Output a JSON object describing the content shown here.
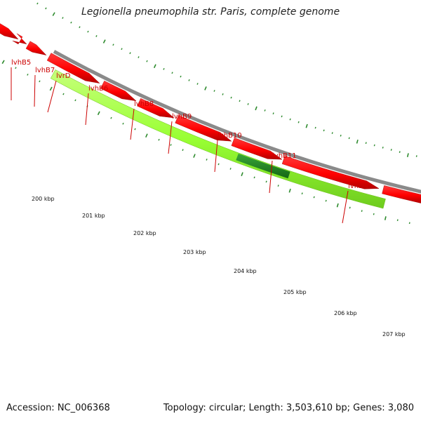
{
  "title": "Legionella pneumophila str. Paris, complete genome",
  "accession_label": "Accession: NC_006368",
  "meta_label": "Topology: circular; Length: 3,503,610 bp; Genes: 3,080",
  "colors": {
    "gene": "#ff0000",
    "feature": "#99ff33",
    "feature_dark": "#228b22",
    "backbone": "#8a8a8a",
    "label": "#cc0000",
    "tick": "#2e8b2e"
  },
  "gene_labels": [
    "lvhB5",
    "lvhB7",
    "lvrD",
    "lvhB6",
    "lvhB8",
    "lvhB9",
    "lvhB10",
    "lvhB11",
    "lvhD4"
  ],
  "scale_labels": [
    "200 kbp",
    "201 kbp",
    "202 kbp",
    "203 kbp",
    "204 kbp",
    "205 kbp",
    "206 kbp",
    "207 kbp"
  ]
}
